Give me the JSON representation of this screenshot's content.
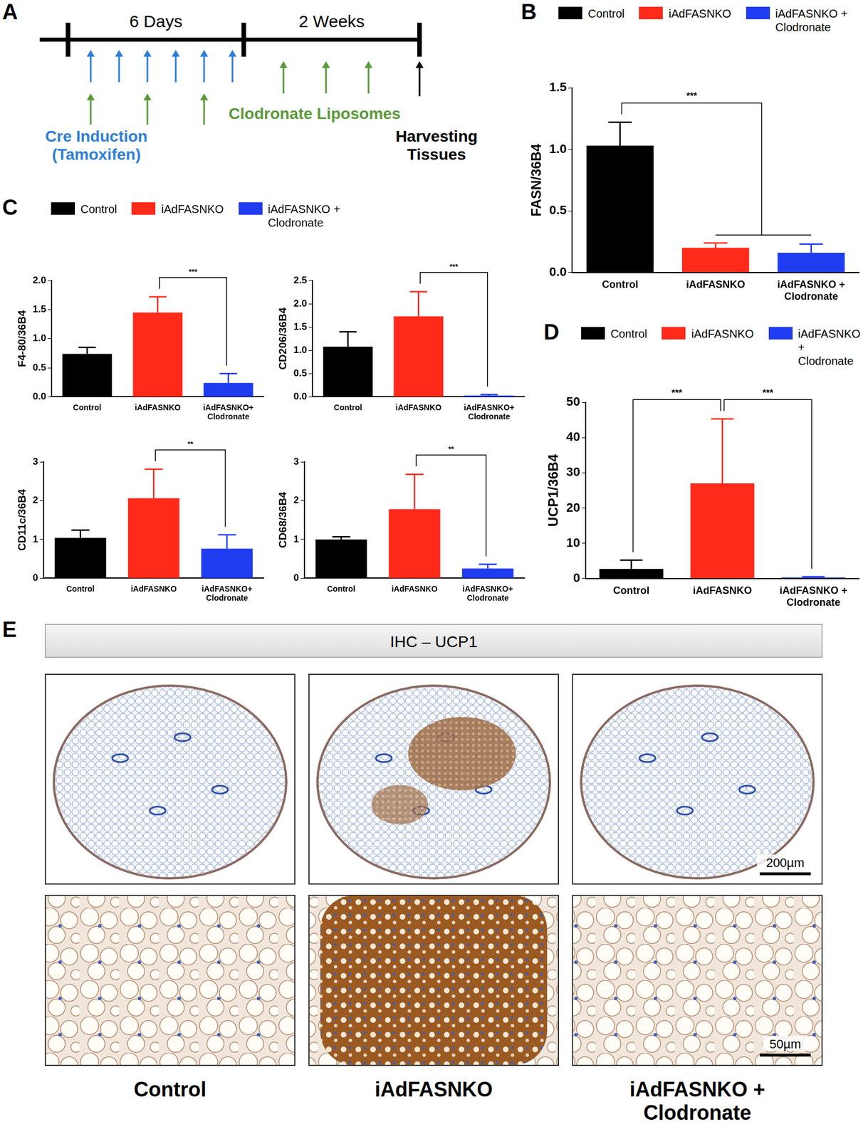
{
  "chart_data": [
    {
      "panel": "B",
      "type": "bar",
      "ylabel": "FASN/36B4",
      "categories": [
        "Control",
        "iAdFASNKO",
        "iAdFASNKO + Clodronate"
      ],
      "values": [
        1.03,
        0.2,
        0.16
      ],
      "errors": [
        0.19,
        0.04,
        0.07
      ],
      "colors": [
        "#000000",
        "#ff2a1a",
        "#1f3cf0"
      ],
      "ylim": [
        0,
        1.5
      ],
      "yticks": [
        {
          "value": 0,
          "label": "0.0"
        },
        {
          "value": 0.5,
          "label": "0.5"
        },
        {
          "value": 1,
          "label": "1.0"
        },
        {
          "value": 1.5,
          "label": "1.5"
        }
      ],
      "grid": false,
      "annotations": [
        {
          "from": "Control",
          "to": [
            "iAdFASNKO",
            "iAdFASNKO + Clodronate"
          ],
          "label": "***"
        }
      ]
    },
    {
      "panel": "C",
      "type": "bar",
      "ylabel": "F4-80/36B4",
      "categories": [
        "Control",
        "iAdFASNKO",
        "iAdFASNKO+ Clodronate"
      ],
      "values": [
        0.74,
        1.45,
        0.24
      ],
      "errors": [
        0.11,
        0.27,
        0.16
      ],
      "colors": [
        "#000000",
        "#ff2a1a",
        "#1f3cf0"
      ],
      "ylim": [
        0,
        2
      ],
      "yticks": [
        {
          "value": 0,
          "label": "0.0"
        },
        {
          "value": 0.5,
          "label": "0.5"
        },
        {
          "value": 1,
          "label": "1.0"
        },
        {
          "value": 1.5,
          "label": "1.5"
        },
        {
          "value": 2,
          "label": "2.0"
        }
      ],
      "grid": false,
      "annotations": [
        {
          "from": "iAdFASNKO",
          "to": "iAdFASNKO+ Clodronate",
          "label": "***"
        }
      ]
    },
    {
      "panel": "C",
      "type": "bar",
      "ylabel": "CD206/36B4",
      "categories": [
        "Control",
        "iAdFASNKO",
        "iAdFASNKO+ Clodronate"
      ],
      "values": [
        1.08,
        1.73,
        0.03
      ],
      "errors": [
        0.32,
        0.53,
        0.02
      ],
      "colors": [
        "#000000",
        "#ff2a1a",
        "#1f3cf0"
      ],
      "ylim": [
        0,
        2.5
      ],
      "yticks": [
        {
          "value": 0,
          "label": "0.0"
        },
        {
          "value": 0.5,
          "label": "0.5"
        },
        {
          "value": 1,
          "label": "1.0"
        },
        {
          "value": 1.5,
          "label": "1.5"
        },
        {
          "value": 2,
          "label": "2.0"
        },
        {
          "value": 2.5,
          "label": "2.5"
        }
      ],
      "grid": false,
      "annotations": [
        {
          "from": "iAdFASNKO",
          "to": "iAdFASNKO+ Clodronate",
          "label": "***"
        }
      ]
    },
    {
      "panel": "C",
      "type": "bar",
      "ylabel": "CD11c/36B4",
      "categories": [
        "Control",
        "iAdFASNKO",
        "iAdFASNKO+ Clodronate"
      ],
      "values": [
        1.04,
        2.06,
        0.76
      ],
      "errors": [
        0.2,
        0.75,
        0.36
      ],
      "colors": [
        "#000000",
        "#ff2a1a",
        "#1f3cf0"
      ],
      "ylim": [
        0,
        3
      ],
      "yticks": [
        0,
        1,
        2,
        3
      ],
      "grid": false,
      "annotations": [
        {
          "from": "iAdFASNKO",
          "to": "iAdFASNKO+ Clodronate",
          "label": "**"
        }
      ]
    },
    {
      "panel": "C",
      "type": "bar",
      "ylabel": "CD68/36B4",
      "categories": [
        "Control",
        "iAdFASNKO",
        "iAdFASNKO+ Clodronate"
      ],
      "values": [
        1.0,
        1.78,
        0.25
      ],
      "errors": [
        0.07,
        0.9,
        0.11
      ],
      "colors": [
        "#000000",
        "#ff2a1a",
        "#1f3cf0"
      ],
      "ylim": [
        0,
        3
      ],
      "yticks": [
        0,
        1,
        2,
        3
      ],
      "grid": false,
      "annotations": [
        {
          "from": "iAdFASNKO",
          "to": "iAdFASNKO+ Clodronate",
          "label": "**"
        }
      ]
    },
    {
      "panel": "D",
      "type": "bar",
      "ylabel": "UCP1/36B4",
      "categories": [
        "Control",
        "iAdFASNKO",
        "iAdFASNKO + Clodronate"
      ],
      "values": [
        2.7,
        27,
        0.3
      ],
      "errors": [
        2.5,
        18.3,
        0.2
      ],
      "colors": [
        "#000000",
        "#ff2a1a",
        "#1f3cf0"
      ],
      "ylim": [
        0,
        50
      ],
      "yticks": [
        0,
        10,
        20,
        30,
        40,
        50
      ],
      "grid": false,
      "annotations": [
        {
          "from": "Control",
          "to": "iAdFASNKO",
          "label": "***"
        },
        {
          "from": "iAdFASNKO",
          "to": "iAdFASNKO + Clodronate",
          "label": "***"
        }
      ]
    }
  ],
  "legends": [
    {
      "panel": "B",
      "entries": [
        {
          "name": "Control",
          "color": "#000000"
        },
        {
          "name": "iAdFASNKO",
          "color": "#ff2a1a"
        },
        {
          "name": "iAdFASNKO +\nClodronate",
          "color": "#1f3cf0"
        }
      ]
    },
    {
      "panel": "C",
      "entries": [
        {
          "name": "Control",
          "color": "#000000"
        },
        {
          "name": "iAdFASNKO",
          "color": "#ff2a1a"
        },
        {
          "name": "iAdFASNKO +\nClodronate",
          "color": "#1f3cf0"
        }
      ]
    },
    {
      "panel": "D",
      "entries": [
        {
          "name": "Control",
          "color": "#000000"
        },
        {
          "name": "iAdFASNKO",
          "color": "#ff2a1a"
        },
        {
          "name": "iAdFASNKO +\nClodronate",
          "color": "#1f3cf0"
        }
      ]
    }
  ],
  "timeline": {
    "panel": "A",
    "periods": [
      "6 Days",
      "2 Weeks"
    ],
    "tamoxifen": "Cre Induction\n(Tamoxifen)",
    "clodronate": "Clodronate Liposomes",
    "harvest": "Harvesting\nTissues"
  },
  "histology": {
    "panel": "E",
    "title": "IHC – UCP1",
    "groups": [
      "Control",
      "iAdFASNKO",
      "iAdFASNKO +\nClodronate"
    ],
    "scale_bars": [
      "200µm",
      "50µm"
    ]
  }
}
